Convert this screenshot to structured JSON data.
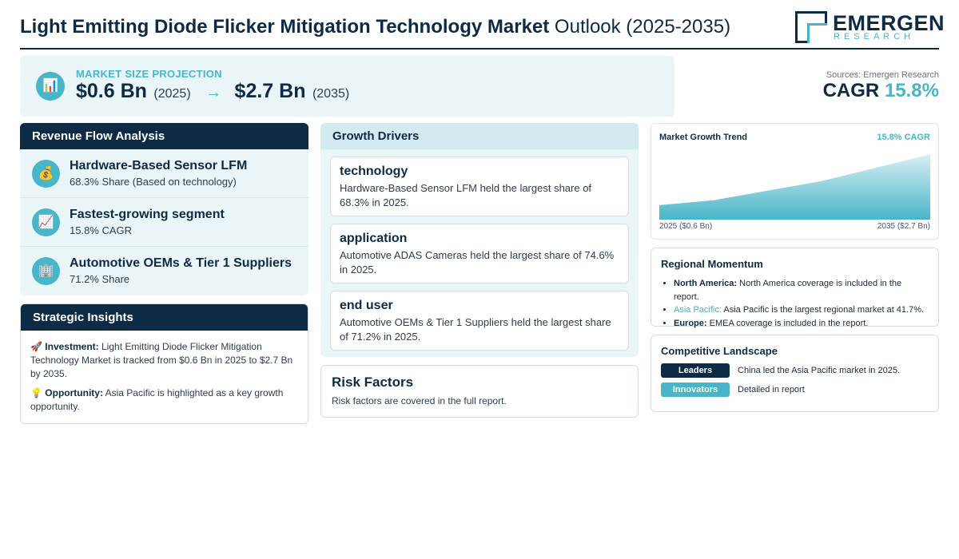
{
  "header": {
    "title_bold": "Light Emitting Diode Flicker Mitigation Technology Market",
    "title_light": "Outlook (2025-2035)",
    "logo_name": "EMERGEN",
    "logo_sub": "RESEARCH"
  },
  "banner": {
    "icon": "bar-chart-icon",
    "label": "MARKET SIZE PROJECTION",
    "start_value": "$0.6 Bn",
    "start_year": "(2025)",
    "arrow": "→",
    "end_value": "$2.7 Bn",
    "end_year": "(2035)"
  },
  "sources": "Sources: Emergen Research",
  "cagr": {
    "label": "CAGR",
    "value": "15.8%"
  },
  "revenue_flow": {
    "title": "Revenue Flow Analysis",
    "items": [
      {
        "icon": "money-bag-icon",
        "glyph": "💰",
        "title": "Hardware-Based Sensor LFM",
        "sub": "68.3% Share (Based on technology)"
      },
      {
        "icon": "trend-up-icon",
        "glyph": "📈",
        "title": "Fastest-growing segment",
        "sub": "15.8% CAGR"
      },
      {
        "icon": "building-icon",
        "glyph": "🏢",
        "title": "Automotive OEMs & Tier 1 Suppliers",
        "sub": "71.2% Share"
      }
    ]
  },
  "strategic": {
    "title": "Strategic Insights",
    "investment_label": "Investment:",
    "investment_text": "Light Emitting Diode Flicker Mitigation Technology Market is tracked from $0.6 Bn in 2025 to $2.7 Bn by 2035.",
    "opportunity_label": "Opportunity:",
    "opportunity_text": "Asia Pacific is highlighted as a key growth opportunity."
  },
  "drivers": {
    "title": "Growth Drivers",
    "cards": [
      {
        "title": "technology",
        "text": "Hardware-Based Sensor LFM held the largest share of 68.3% in 2025."
      },
      {
        "title": "application",
        "text": "Automotive ADAS Cameras held the largest share of 74.6% in 2025."
      },
      {
        "title": "end user",
        "text": "Automotive OEMs & Tier 1 Suppliers held the largest share of 71.2% in 2025."
      }
    ]
  },
  "risk": {
    "title": "Risk Factors",
    "text": "Risk factors are covered in the full report."
  },
  "chart_data": {
    "type": "area",
    "title": "Market Growth Trend",
    "badge": "15.8% CAGR",
    "x": [
      2025,
      2027,
      2031,
      2035
    ],
    "values": [
      0.6,
      0.8,
      1.6,
      2.7
    ],
    "unit": "$ Bn",
    "start_label": "2025 ($0.6 Bn)",
    "end_label": "2035 ($2.7 Bn)",
    "color_top": "#48b5c8",
    "color_bottom": "#d7eef4"
  },
  "regional": {
    "title": "Regional Momentum",
    "items": [
      {
        "region": "North America:",
        "text": "North America coverage is included in the report.",
        "highlight": false
      },
      {
        "region": "Asia Pacific:",
        "text": "Asia Pacific is the largest regional market at 41.7%.",
        "highlight": true
      },
      {
        "region": "Europe:",
        "text": "EMEA coverage is included in the report.",
        "highlight": false
      }
    ]
  },
  "competitive": {
    "title": "Competitive Landscape",
    "rows": [
      {
        "label": "Leaders",
        "text": "China led the Asia Pacific market in 2025.",
        "style": "dark"
      },
      {
        "label": "Innovators",
        "text": "Detailed in report",
        "style": "teal"
      }
    ]
  }
}
